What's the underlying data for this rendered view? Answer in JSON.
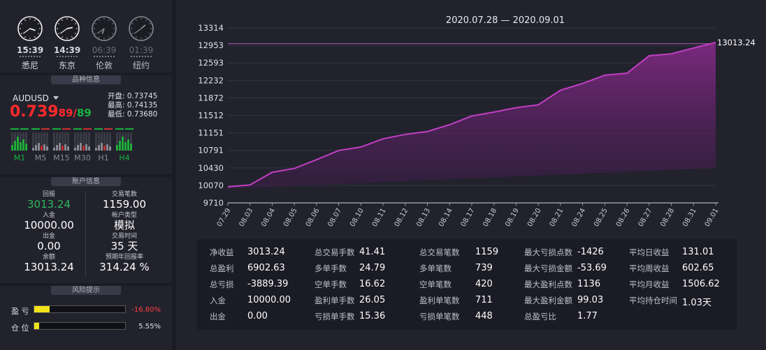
{
  "clocks": [
    {
      "time": "15:39",
      "city": "悉尼",
      "hour": 15,
      "minute": 39,
      "active": true
    },
    {
      "time": "14:39",
      "city": "东京",
      "hour": 14,
      "minute": 39,
      "active": true
    },
    {
      "time": "06:39",
      "city": "伦敦",
      "hour": 6,
      "minute": 39,
      "active": false
    },
    {
      "time": "01:39",
      "city": "纽约",
      "hour": 1,
      "minute": 39,
      "active": false
    }
  ],
  "symbol": {
    "section_title": "品种信息",
    "name": "AUDUSD",
    "price_big": "0.739",
    "price_small": "89",
    "price_sep": "/",
    "price_small2": "89",
    "open_label": "开盘:",
    "open": "0.73745",
    "high_label": "最高:",
    "high": "0.74135",
    "low_label": "最低:",
    "low": "0.73680",
    "timeframes": [
      {
        "label": "M1",
        "color": "#17b340"
      },
      {
        "label": "M5",
        "color": "#8a8a94"
      },
      {
        "label": "M15",
        "color": "#8a8a94"
      },
      {
        "label": "M30",
        "color": "#8a8a94"
      },
      {
        "label": "H1",
        "color": "#8a8a94"
      },
      {
        "label": "H4",
        "color": "#17b340"
      }
    ]
  },
  "account": {
    "section_title": "账户信息",
    "items": [
      {
        "label": "回报",
        "value": "3013.24",
        "green": true
      },
      {
        "label": "交易笔数",
        "value": "1159.00"
      },
      {
        "label": "入金",
        "value": "10000.00"
      },
      {
        "label": "帐户类型",
        "value": "模拟"
      },
      {
        "label": "出金",
        "value": "0.00"
      },
      {
        "label": "交易时间",
        "value": "35 天"
      },
      {
        "label": "余额",
        "value": "13013.24"
      },
      {
        "label": "预期年回报率",
        "value": "314.24 %"
      }
    ]
  },
  "risk": {
    "section_title": "风险提示",
    "pnl_label": "盈 亏",
    "pnl_value": "-16.80%",
    "pnl_level": 0.168,
    "pos_label": "仓 位",
    "pos_value": "5.55%",
    "pos_level": 0.0555
  },
  "chart_data": {
    "type": "area",
    "title": "2020.07.28 — 2020.09.01",
    "categories": [
      "07.29",
      "08.03",
      "08.04",
      "08.05",
      "08.06",
      "08.07",
      "08.10",
      "08.11",
      "08.12",
      "08.13",
      "08.14",
      "08.17",
      "08.18",
      "08.19",
      "08.20",
      "08.21",
      "08.24",
      "08.25",
      "08.26",
      "08.27",
      "08.28",
      "08.31",
      "09.01"
    ],
    "values": [
      10040,
      10080,
      10340,
      10420,
      10600,
      10790,
      10860,
      11030,
      11120,
      11180,
      11320,
      11500,
      11580,
      11670,
      11730,
      12030,
      12170,
      12340,
      12380,
      12740,
      12780,
      12900,
      13013.24
    ],
    "yticks": [
      9710,
      10070,
      10430,
      10791,
      11151,
      11512,
      11872,
      12232,
      12593,
      12953,
      13314
    ],
    "ylim": [
      9710,
      13314
    ],
    "last_label": "13013.24",
    "reference_value": 12990,
    "grid": true,
    "line_color": "#c23fc4"
  },
  "stats": [
    [
      {
        "k": "净收益",
        "v": "3013.24"
      },
      {
        "k": "总盈利",
        "v": "6902.63"
      },
      {
        "k": "总亏损",
        "v": "-3889.39"
      },
      {
        "k": "入金",
        "v": "10000.00"
      },
      {
        "k": "出金",
        "v": "0.00"
      }
    ],
    [
      {
        "k": "总交易手数",
        "v": "41.41"
      },
      {
        "k": "多单手数",
        "v": "24.79"
      },
      {
        "k": "空单手数",
        "v": "16.62"
      },
      {
        "k": "盈利单手数",
        "v": "26.05"
      },
      {
        "k": "亏损单手数",
        "v": "15.36"
      }
    ],
    [
      {
        "k": "总交易笔数",
        "v": "1159"
      },
      {
        "k": "多单笔数",
        "v": "739"
      },
      {
        "k": "空单笔数",
        "v": "420"
      },
      {
        "k": "盈利单笔数",
        "v": "711"
      },
      {
        "k": "亏损单笔数",
        "v": "448"
      }
    ],
    [
      {
        "k": "最大亏损点数",
        "v": "-1426"
      },
      {
        "k": "最大亏损金额",
        "v": "-53.69"
      },
      {
        "k": "最大盈利点数",
        "v": "1136"
      },
      {
        "k": "最大盈利金额",
        "v": "99.03"
      },
      {
        "k": "总盈亏比",
        "v": "1.77"
      }
    ],
    [
      {
        "k": "平均日收益",
        "v": "131.01"
      },
      {
        "k": "平均周收益",
        "v": "602.65"
      },
      {
        "k": "平均月收益",
        "v": "1506.62"
      },
      {
        "k": "平均持仓时间",
        "v": "1.03天"
      }
    ]
  ]
}
